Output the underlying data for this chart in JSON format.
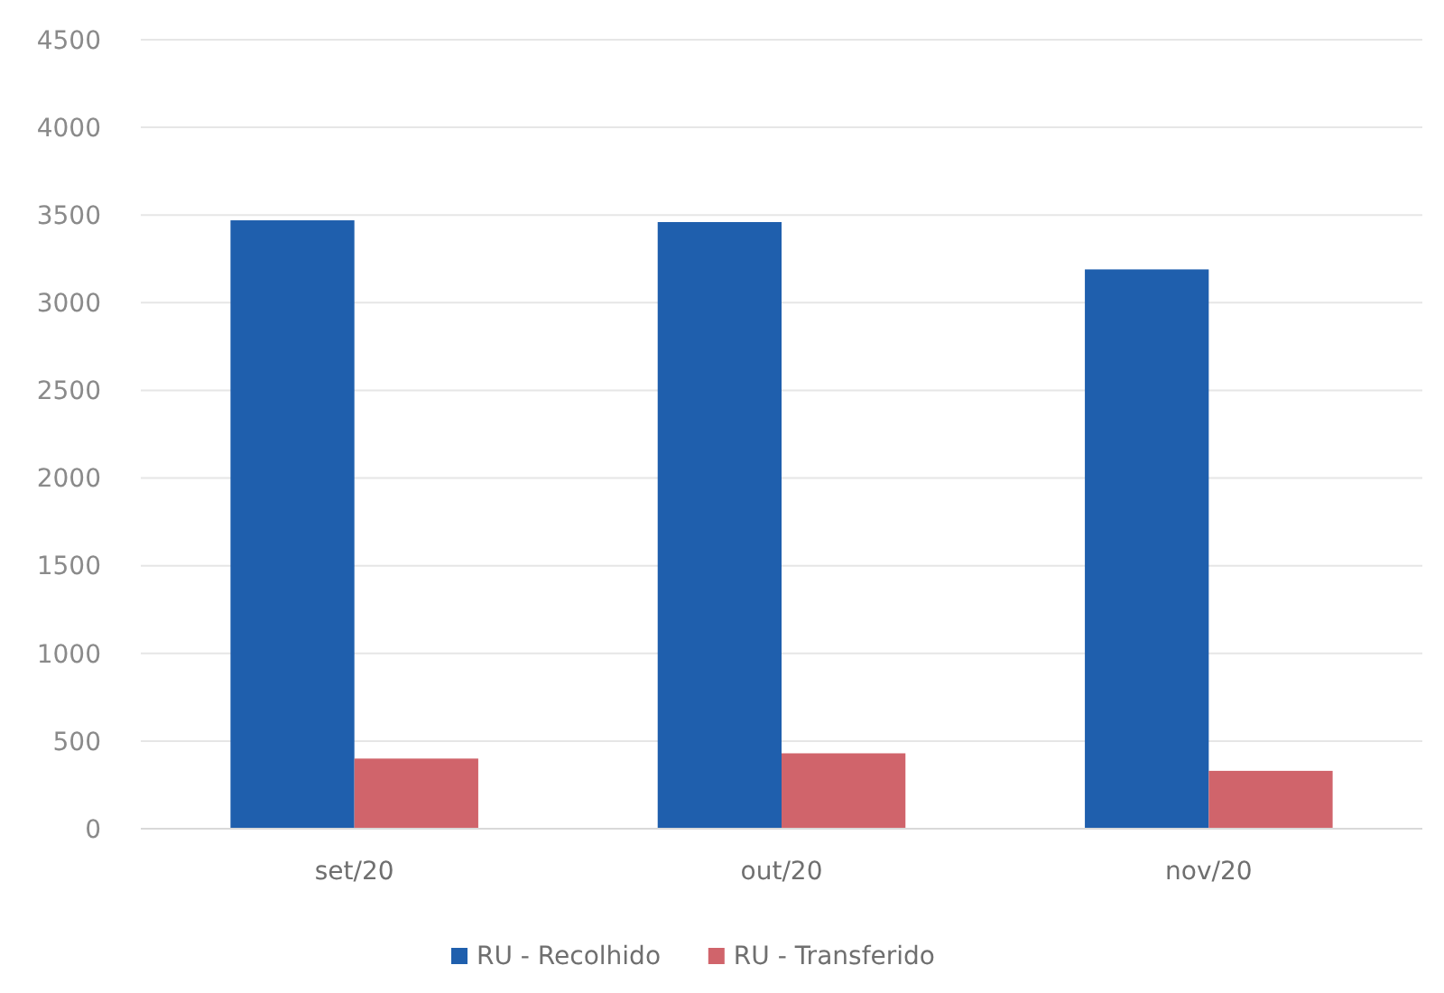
{
  "chart_data": {
    "type": "bar",
    "categories": [
      "set/20",
      "out/20",
      "nov/20"
    ],
    "series": [
      {
        "name": "RU - Recolhido",
        "color": "#1f5fad",
        "values": [
          3470,
          3460,
          3190
        ]
      },
      {
        "name": "RU - Transferido",
        "color": "#d0646b",
        "values": [
          400,
          430,
          330
        ]
      }
    ],
    "ylim": [
      0,
      4500
    ],
    "yticks": [
      0,
      500,
      1000,
      1500,
      2000,
      2500,
      3000,
      3500,
      4000,
      4500
    ],
    "grid": "y",
    "legend": "bottom"
  }
}
